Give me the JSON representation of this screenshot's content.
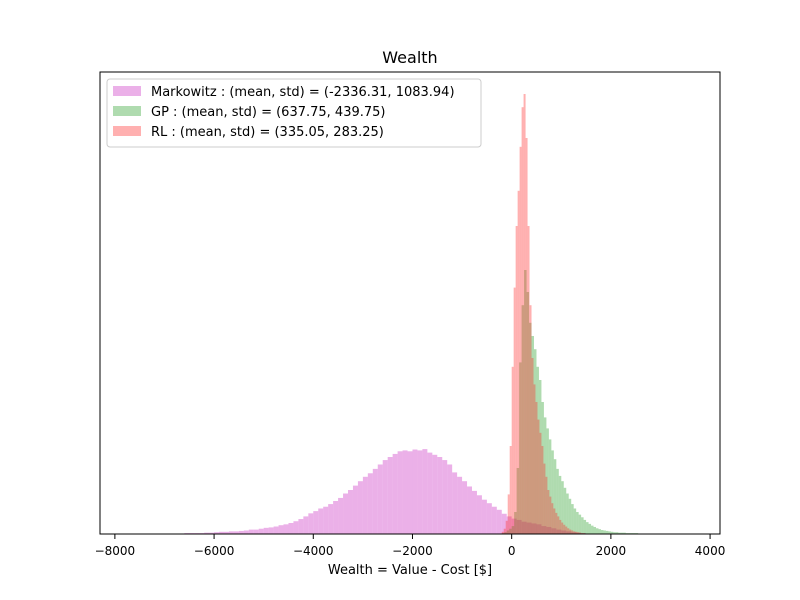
{
  "chart_data": {
    "type": "histogram",
    "title": "Wealth",
    "xlabel": "Wealth = Value - Cost [$]",
    "ylabel": "",
    "xlim": [
      -8300,
      4200
    ],
    "ylim": [
      0,
      1.05
    ],
    "y_ticks_visible": false,
    "x_ticks": [
      -8000,
      -6000,
      -4000,
      -2000,
      0,
      2000,
      4000
    ],
    "x_tick_labels": [
      "−8000",
      "−6000",
      "−4000",
      "−2000",
      "0",
      "2000",
      "4000"
    ],
    "legend": {
      "placement": "top-left"
    },
    "series": [
      {
        "name": "Markowitz : (mean, std) = (-2336.31, 1083.94)",
        "color": "#da70d6",
        "opacity": 0.55,
        "bin_width": 100,
        "bin_start": -7000,
        "values": [
          0.001,
          0.001,
          0.001,
          0.001,
          0.002,
          0.002,
          0.002,
          0.002,
          0.003,
          0.003,
          0.004,
          0.005,
          0.005,
          0.006,
          0.006,
          0.007,
          0.008,
          0.01,
          0.01,
          0.012,
          0.014,
          0.015,
          0.017,
          0.02,
          0.022,
          0.025,
          0.029,
          0.034,
          0.04,
          0.047,
          0.052,
          0.058,
          0.062,
          0.068,
          0.075,
          0.082,
          0.092,
          0.1,
          0.11,
          0.12,
          0.13,
          0.138,
          0.148,
          0.158,
          0.168,
          0.175,
          0.182,
          0.188,
          0.19,
          0.188,
          0.192,
          0.19,
          0.193,
          0.185,
          0.18,
          0.175,
          0.168,
          0.158,
          0.14,
          0.13,
          0.12,
          0.108,
          0.098,
          0.088,
          0.078,
          0.07,
          0.062,
          0.055,
          0.046,
          0.04,
          0.035,
          0.032,
          0.028,
          0.026,
          0.024,
          0.022,
          0.018,
          0.016,
          0.013,
          0.01,
          0.008,
          0.006,
          0.004,
          0.003,
          0.002,
          0.001,
          0.001,
          0.001,
          0.001,
          0.001
        ]
      },
      {
        "name": "GP : (mean, std) = (637.75, 439.75)",
        "color": "#2ca02c",
        "opacity": 0.38,
        "bin_width": 50,
        "bin_start": -200,
        "values": [
          0.002,
          0.004,
          0.008,
          0.012,
          0.018,
          0.05,
          0.15,
          0.39,
          0.52,
          0.6,
          0.55,
          0.48,
          0.45,
          0.42,
          0.38,
          0.35,
          0.3,
          0.265,
          0.24,
          0.215,
          0.19,
          0.17,
          0.148,
          0.132,
          0.12,
          0.105,
          0.092,
          0.08,
          0.068,
          0.058,
          0.05,
          0.044,
          0.038,
          0.032,
          0.027,
          0.023,
          0.019,
          0.016,
          0.013,
          0.011,
          0.009,
          0.008,
          0.007,
          0.006,
          0.005,
          0.004,
          0.004,
          0.003,
          0.003,
          0.003,
          0.002,
          0.002,
          0.002,
          0.002,
          0.002,
          0.001,
          0.001,
          0.001,
          0.001,
          0.001,
          0.001,
          0.001,
          0.001,
          0.001,
          0.001,
          0.001,
          0.001,
          0.001,
          0.001,
          0.001,
          0.001,
          0.001,
          0.001,
          0.001,
          0.001,
          0.001,
          0.001
        ]
      },
      {
        "name": "RL : (mean, std) = (335.05, 283.25)",
        "color": "#ff3030",
        "opacity": 0.38,
        "bin_width": 40,
        "bin_start": -200,
        "values": [
          0.005,
          0.012,
          0.03,
          0.09,
          0.2,
          0.38,
          0.56,
          0.7,
          0.78,
          0.88,
          0.97,
          1.0,
          0.9,
          0.7,
          0.52,
          0.4,
          0.34,
          0.3,
          0.26,
          0.23,
          0.2,
          0.16,
          0.13,
          0.1,
          0.085,
          0.07,
          0.058,
          0.048,
          0.04,
          0.032,
          0.026,
          0.021,
          0.017,
          0.013,
          0.01,
          0.008,
          0.006,
          0.005,
          0.004,
          0.003,
          0.002,
          0.002,
          0.001,
          0.001,
          0.001,
          0.001
        ]
      }
    ]
  }
}
